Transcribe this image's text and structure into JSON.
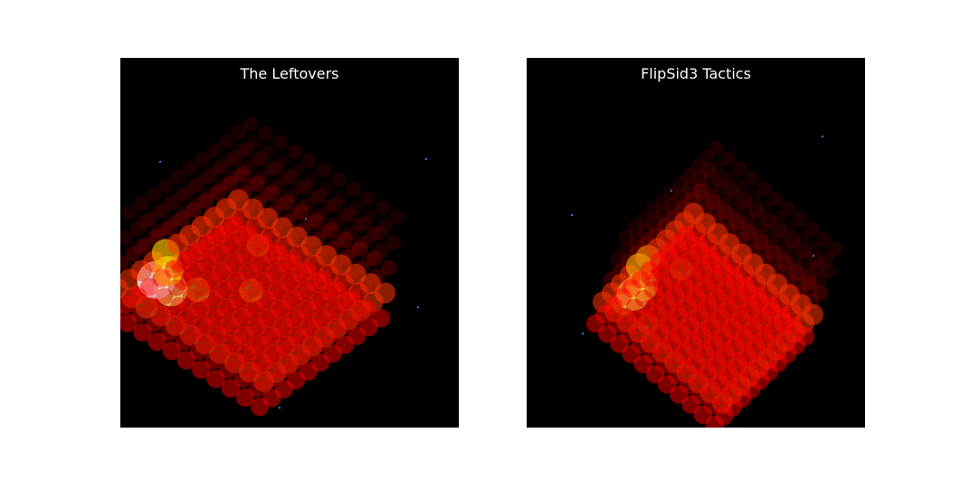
{
  "figure": {
    "background": "#ffffff"
  },
  "panels": [
    {
      "title": "The Leftovers",
      "background": "#000000"
    },
    {
      "title": "FlipSid3 Tactics",
      "background": "#000000"
    }
  ],
  "chart_data": [
    {
      "type": "scatter",
      "title": "The Leftovers",
      "projection": "3d",
      "axes_visible": false,
      "grid": false,
      "colormap": "hot",
      "grid_size": [
        11,
        11,
        5
      ],
      "marker_encoding": "size and color scale with event count per cell",
      "hotspots": [
        {
          "cell": [
            1,
            2,
            1
          ],
          "intensity": 1.0
        },
        {
          "cell": [
            2,
            2,
            1
          ],
          "intensity": 0.85
        },
        {
          "cell": [
            1,
            3,
            1
          ],
          "intensity": 0.7
        },
        {
          "cell": [
            0,
            4,
            1
          ],
          "intensity": 0.6
        },
        {
          "cell": [
            3,
            3,
            1
          ],
          "intensity": 0.5
        },
        {
          "cell": [
            5,
            5,
            1
          ],
          "intensity": 0.45
        },
        {
          "cell": [
            3,
            8,
            1
          ],
          "intensity": 0.4
        },
        {
          "cell": [
            2,
            0,
            1
          ],
          "intensity": 0.4
        }
      ]
    },
    {
      "type": "scatter",
      "title": "FlipSid3 Tactics",
      "projection": "3d",
      "axes_visible": false,
      "grid": false,
      "colormap": "hot",
      "grid_size": [
        11,
        11,
        5
      ],
      "marker_encoding": "size and color scale with event count per cell",
      "hotspots": [
        {
          "cell": [
            1,
            2,
            1
          ],
          "intensity": 0.8
        },
        {
          "cell": [
            1,
            3,
            1
          ],
          "intensity": 0.75
        },
        {
          "cell": [
            0,
            4,
            1
          ],
          "intensity": 0.55
        },
        {
          "cell": [
            0,
            5,
            1
          ],
          "intensity": 0.5
        },
        {
          "cell": [
            1,
            1,
            1
          ],
          "intensity": 0.45
        },
        {
          "cell": [
            2,
            6,
            1
          ],
          "intensity": 0.4
        },
        {
          "cell": [
            3,
            1,
            1
          ],
          "intensity": 0.35
        }
      ]
    }
  ]
}
